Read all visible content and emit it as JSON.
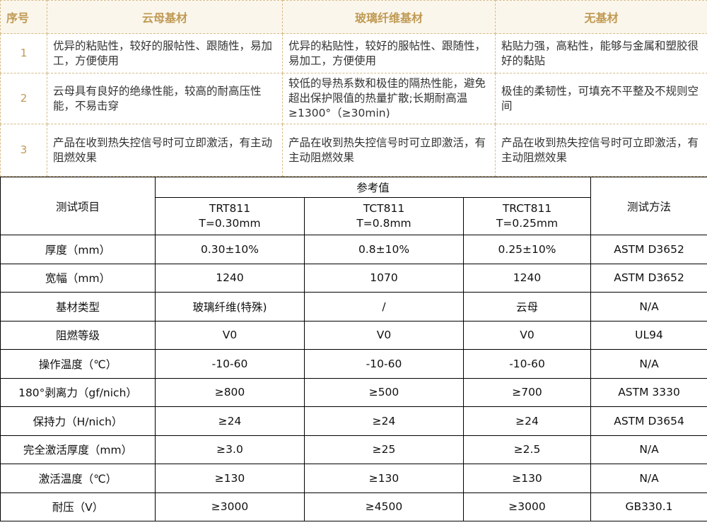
{
  "top_table": {
    "headers": [
      "序号",
      "云母基材",
      "玻璃纤维基材",
      "无基材"
    ],
    "rows": [
      {
        "seq": "1",
        "mica": "优异的粘贴性，较好的服帖性、跟随性，易加工，方便使用",
        "glass": "优异的粘贴性，较好的服帖性、跟随性，易加工，方便使用",
        "none": "粘贴力强，高粘性，能够与金属和塑胶很好的黏贴"
      },
      {
        "seq": "2",
        "mica": "云母具有良好的绝缘性能，较高的耐高压性能，不易击穿",
        "glass": "较低的导热系数和极佳的隔热性能，避免超出保护限值的热量扩散;长期耐高温≥1300°（≥30min)",
        "none": "极佳的柔韧性，可填充不平整及不规则空间"
      },
      {
        "seq": "3",
        "mica": "产品在收到热失控信号时可立即激活，有主动阻燃效果",
        "glass": "产品在收到热失控信号时可立即激活，有主动阻燃效果",
        "none": "产品在收到热失控信号时可立即激活，有主动阻燃效果"
      }
    ]
  },
  "spec_table": {
    "test_item_label": "测试项目",
    "reference_label": "参考值",
    "method_label": "测试方法",
    "products": [
      {
        "model": "TRT811",
        "thickness": "T=0.30mm"
      },
      {
        "model": "TCT811",
        "thickness": "T=0.8mm"
      },
      {
        "model": "TRCT811",
        "thickness": "T=0.25mm"
      }
    ],
    "rows": [
      {
        "item": "厚度（mm）",
        "values": [
          "0.30±10%",
          "0.8±10%",
          "0.25±10%"
        ],
        "method": "ASTM D3652"
      },
      {
        "item": "宽幅（mm）",
        "values": [
          "1240",
          "1070",
          "1240"
        ],
        "method": "ASTM D3652"
      },
      {
        "item": "基材类型",
        "values": [
          "玻璃纤维(特殊)",
          "/",
          "云母"
        ],
        "method": "N/A"
      },
      {
        "item": "阻燃等级",
        "values": [
          "V0",
          "V0",
          "V0"
        ],
        "method": "UL94"
      },
      {
        "item": "操作温度（℃）",
        "values": [
          "-10-60",
          "-10-60",
          "-10-60"
        ],
        "method": "N/A"
      },
      {
        "item": "180°剥离力（gf/nich）",
        "values": [
          "≥800",
          "≥500",
          "≥700"
        ],
        "method": "ASTM 3330"
      },
      {
        "item": "保持力（H/nich）",
        "values": [
          "≥24",
          "≥24",
          "≥24"
        ],
        "method": "ASTM D3654"
      },
      {
        "item": "完全激活厚度（mm）",
        "values": [
          "≥3.0",
          "≥25",
          "≥2.5"
        ],
        "method": "N/A"
      },
      {
        "item": "激活温度（℃）",
        "values": [
          "≥130",
          "≥130",
          "≥130"
        ],
        "method": "N/A"
      },
      {
        "item": "耐压（V）",
        "values": [
          "≥3000",
          "≥4500",
          "≥3000"
        ],
        "method": "GB330.1"
      }
    ]
  }
}
